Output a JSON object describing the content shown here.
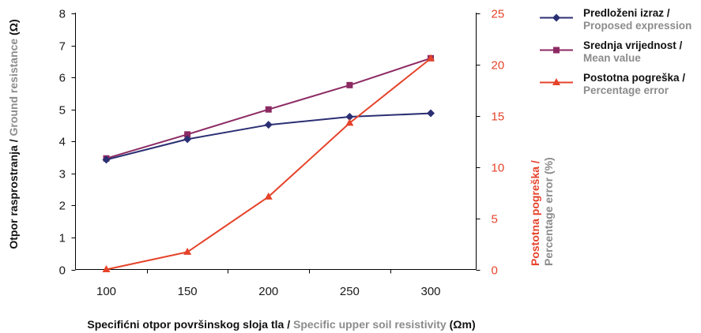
{
  "chart_data": {
    "type": "line",
    "x": [
      100,
      150,
      200,
      250,
      300
    ],
    "xticks": [
      100,
      150,
      200,
      250,
      300
    ],
    "xlim": [
      81,
      328
    ],
    "xlabel": {
      "hr": "Specifićni otpor površinskog sloja tla /",
      "en": "Specific upper soil resistivity",
      "unit": "(Ωm)"
    },
    "left_axis": {
      "ylim": [
        0,
        8
      ],
      "ticks": [
        0,
        1,
        2,
        3,
        4,
        5,
        6,
        7,
        8
      ],
      "label": {
        "hr": "Otpor rasprostranja /",
        "en": "Ground resistance",
        "unit": "(Ω)"
      },
      "series": [
        {
          "name": "Predloženi izraz /",
          "name_en": "Proposed expression",
          "color": "#2b2f73",
          "marker": "diamond",
          "values": [
            3.43,
            4.07,
            4.52,
            4.77,
            4.88
          ]
        },
        {
          "name": "Srednja vrijednost /",
          "name_en": "Mean value",
          "color": "#8c2a63",
          "marker": "square",
          "values": [
            3.47,
            4.22,
            5.0,
            5.76,
            6.6
          ]
        }
      ]
    },
    "right_axis": {
      "ylim": [
        0,
        25
      ],
      "ticks": [
        0,
        5,
        10,
        15,
        20,
        25
      ],
      "color": "#e5432a",
      "label": {
        "hr": "Postotna pogreška /",
        "en": "Percentage error (%)"
      },
      "series": [
        {
          "name": "Postotna pogreška /",
          "name_en": "Percentage error",
          "color": "#e5432a",
          "marker": "triangle",
          "values": [
            0.0,
            1.7,
            7.1,
            14.3,
            20.6
          ]
        }
      ]
    },
    "legend": "right",
    "grid": false,
    "label_colors": {
      "primary": "#111111",
      "secondary": "#8c8c8c"
    }
  }
}
